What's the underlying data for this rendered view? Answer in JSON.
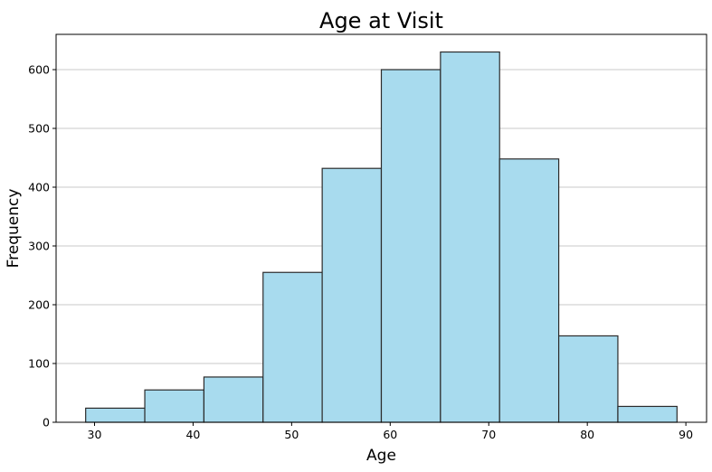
{
  "chart_data": {
    "type": "bar",
    "title": "Age at Visit",
    "xlabel": "Age",
    "ylabel": "Frequency",
    "bins": [
      {
        "start": 29.1,
        "end": 35.1,
        "count": 24
      },
      {
        "start": 35.1,
        "end": 41.1,
        "count": 55
      },
      {
        "start": 41.1,
        "end": 47.1,
        "count": 77
      },
      {
        "start": 47.1,
        "end": 53.1,
        "count": 255
      },
      {
        "start": 53.1,
        "end": 59.1,
        "count": 432
      },
      {
        "start": 59.1,
        "end": 65.1,
        "count": 600
      },
      {
        "start": 65.1,
        "end": 71.1,
        "count": 630
      },
      {
        "start": 71.1,
        "end": 77.1,
        "count": 448
      },
      {
        "start": 77.1,
        "end": 83.1,
        "count": 147
      },
      {
        "start": 83.1,
        "end": 89.1,
        "count": 27
      }
    ],
    "xlim": [
      26.1,
      92.1
    ],
    "ylim": [
      0,
      660
    ],
    "xticks": [
      "30",
      "40",
      "50",
      "60",
      "70",
      "80",
      "90"
    ],
    "yticks": [
      "0",
      "100",
      "200",
      "300",
      "400",
      "500",
      "600"
    ],
    "grid": "horizontal",
    "colors": {
      "bar_fill": "#a8dbee",
      "bar_edge": "#2b2b2b",
      "grid": "#c8c8c8"
    }
  }
}
